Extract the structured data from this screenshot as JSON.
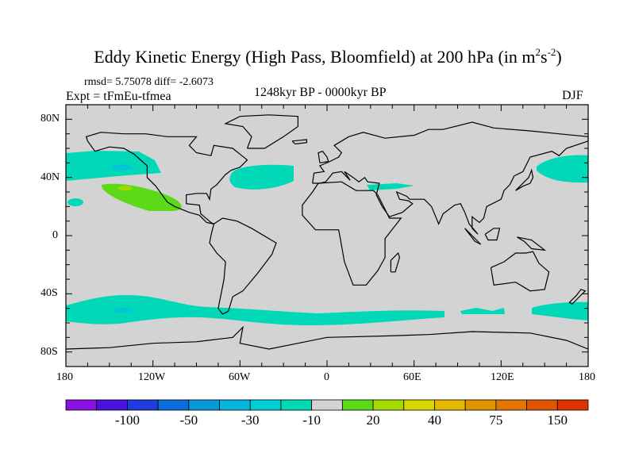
{
  "title": {
    "main": "Eddy Kinetic Energy (High Pass, Bloomfield) at 200 hPa (in m",
    "sup1": "2",
    "mid": "s",
    "sup2": "-2",
    "end": ")"
  },
  "stats": "rmsd= 5.75078 diff= -2.6073",
  "experiment": "Expt = tFmEu-tfmea",
  "period": "1248kyr BP - 0000kyr BP",
  "season": "DJF",
  "lat_labels": [
    "80N",
    "40N",
    "0",
    "40S",
    "80S"
  ],
  "lon_labels": [
    "180",
    "120W",
    "60W",
    "0",
    "60E",
    "120E",
    "180"
  ],
  "colorbar": {
    "colors": [
      "#8a12dc",
      "#4a12dc",
      "#1e3ddc",
      "#0a6fdc",
      "#089ad8",
      "#08b4dc",
      "#00ccd6",
      "#00d9b4",
      "#d3d3d3",
      "#5cda18",
      "#a4da00",
      "#d8d800",
      "#e3b800",
      "#e09400",
      "#e27400",
      "#e05400",
      "#e03200"
    ],
    "labels": [
      "-100",
      "-50",
      "-30",
      "-10",
      "20",
      "40",
      "75",
      "150"
    ]
  },
  "colors": {
    "land_ocean": "#d3d3d3",
    "teal": "#00d8b8",
    "cyan": "#00c4d8",
    "green": "#5cda18",
    "yellowgreen": "#a4d800"
  }
}
